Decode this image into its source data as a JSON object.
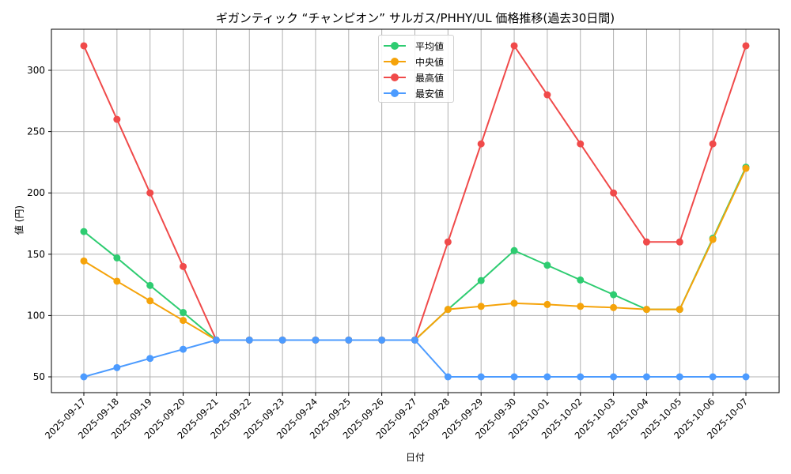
{
  "chart_data": {
    "type": "line",
    "title": "ギガンティック “チャンピオン” サルガス/PHHY/UL 価格推移(過去30日間)",
    "xlabel": "日付",
    "ylabel": "値 (円)",
    "ylim": [
      37,
      333
    ],
    "yticks": [
      50,
      100,
      150,
      200,
      250,
      300
    ],
    "grid": true,
    "legend_position": "upper center",
    "x": [
      "2025-09-17",
      "2025-09-18",
      "2025-09-19",
      "2025-09-20",
      "2025-09-21",
      "2025-09-22",
      "2025-09-23",
      "2025-09-24",
      "2025-09-25",
      "2025-09-26",
      "2025-09-27",
      "2025-09-28",
      "2025-09-29",
      "2025-09-30",
      "2025-10-01",
      "2025-10-02",
      "2025-10-03",
      "2025-10-04",
      "2025-10-05",
      "2025-10-06",
      "2025-10-07"
    ],
    "series": [
      {
        "name": "平均値",
        "color": "#2ecc71",
        "values": [
          168.5,
          147,
          124.5,
          102.5,
          80,
          80,
          80,
          80,
          80,
          80,
          80,
          105,
          128.5,
          153,
          141,
          129,
          117,
          105,
          105,
          163,
          221
        ]
      },
      {
        "name": "中央値",
        "color": "#f5a30a",
        "values": [
          144.5,
          128,
          112,
          96,
          80,
          80,
          80,
          80,
          80,
          80,
          80,
          105,
          107.5,
          110,
          109,
          107.5,
          106.5,
          105,
          105,
          162,
          220
        ]
      },
      {
        "name": "最高値",
        "color": "#f04a4a",
        "values": [
          320,
          260,
          200,
          140,
          80,
          80,
          80,
          80,
          80,
          80,
          80,
          160,
          240,
          320,
          280,
          240,
          200,
          160,
          160,
          240,
          320
        ]
      },
      {
        "name": "最安値",
        "color": "#4c9bff",
        "values": [
          50,
          57.5,
          65,
          72.5,
          80,
          80,
          80,
          80,
          80,
          80,
          80,
          50,
          50,
          50,
          50,
          50,
          50,
          50,
          50,
          50,
          50
        ]
      }
    ]
  }
}
